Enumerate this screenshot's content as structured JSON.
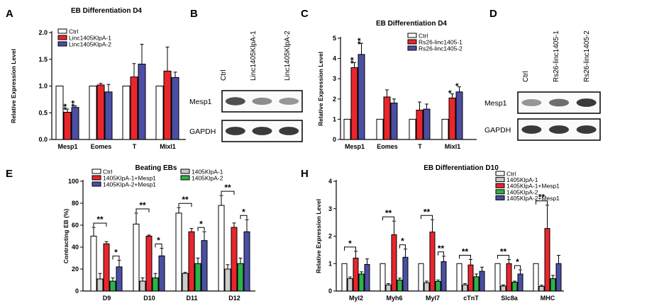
{
  "chart_data": [
    {
      "panel": "A",
      "type": "bar",
      "title": "EB Differentiation D4",
      "ylabel": "Relative Expression Level",
      "xlabel": "",
      "ylim": [
        0,
        2.0
      ],
      "yticks": [
        "0.0",
        "0.5",
        "1.0",
        "1.5",
        "2.0"
      ],
      "categories": [
        "Mesp1",
        "Eomes",
        "T",
        "Mixl1"
      ],
      "series": [
        {
          "name": "Ctrl",
          "color": "#ffffff",
          "values": [
            1.0,
            1.0,
            1.0,
            1.0
          ],
          "errors": [
            0.0,
            0.0,
            0.0,
            0.0
          ],
          "stars": [
            "",
            "",
            "",
            ""
          ]
        },
        {
          "name": "Linc1405KlpA-1",
          "color": "#e8262c",
          "values": [
            0.51,
            1.02,
            1.17,
            1.28
          ],
          "errors": [
            0.06,
            0.03,
            0.25,
            0.45
          ],
          "stars": [
            "**",
            "",
            "",
            ""
          ]
        },
        {
          "name": "Linc1405KlpA-2",
          "color": "#4a4fa3",
          "values": [
            0.6,
            0.89,
            1.41,
            1.16
          ],
          "errors": [
            0.03,
            0.14,
            0.37,
            0.1
          ],
          "stars": [
            "**",
            "",
            "",
            ""
          ]
        }
      ],
      "legend": "top-left"
    },
    {
      "panel": "C",
      "type": "bar",
      "title": "EB Differentiation D4",
      "ylabel": "Relative Expression Level",
      "xlabel": "",
      "ylim": [
        0,
        5
      ],
      "yticks": [
        "0",
        "1",
        "2",
        "3",
        "4",
        "5"
      ],
      "categories": [
        "Mesp1",
        "Eomes",
        "T",
        "Mixl1"
      ],
      "series": [
        {
          "name": "Ctrl",
          "color": "#ffffff",
          "values": [
            1.0,
            1.0,
            1.0,
            1.0
          ],
          "errors": [
            0,
            0,
            0,
            0
          ],
          "stars": [
            "",
            "",
            "",
            ""
          ]
        },
        {
          "name": "Rs26-linc1405-1",
          "color": "#e8262c",
          "values": [
            3.55,
            2.1,
            1.45,
            2.05
          ],
          "errors": [
            0.25,
            0.35,
            0.4,
            0.2
          ],
          "stars": [
            "**",
            "",
            "",
            "*"
          ]
        },
        {
          "name": "Rs26-linc1405-2",
          "color": "#4a4fa3",
          "values": [
            4.2,
            1.8,
            1.5,
            2.35
          ],
          "errors": [
            0.55,
            0.2,
            0.25,
            0.25
          ],
          "stars": [
            "**",
            "",
            "",
            "*"
          ]
        }
      ],
      "legend": "top-right"
    },
    {
      "panel": "E",
      "type": "bar",
      "title": "Beating  EBs",
      "ylabel": "Contracting EB (%)",
      "xlabel": "",
      "ylim": [
        0,
        100
      ],
      "yticks": [
        "0",
        "20",
        "40",
        "60",
        "80",
        "100"
      ],
      "categories": [
        "D9",
        "D10",
        "D11",
        "D12"
      ],
      "series": [
        {
          "name": "Ctrl",
          "color": "#ffffff",
          "values": [
            50,
            61,
            71,
            78
          ],
          "errors": [
            8,
            10,
            5,
            9
          ]
        },
        {
          "name": "1405KlpA-1",
          "color": "#cccccc",
          "values": [
            11,
            9,
            16,
            20
          ],
          "errors": [
            5,
            3,
            1,
            4
          ]
        },
        {
          "name": "1405KlpA-1+Mesp1",
          "color": "#e8262c",
          "values": [
            43,
            50,
            54,
            58
          ],
          "errors": [
            2,
            1,
            3,
            4
          ]
        },
        {
          "name": "1405KlpA-2",
          "color": "#2bb34a",
          "values": [
            9,
            12,
            25,
            25
          ],
          "errors": [
            3,
            4,
            5,
            5
          ]
        },
        {
          "name": "1405KlpA-2+Mesp1",
          "color": "#4a4fa3",
          "values": [
            22,
            32,
            46,
            54
          ],
          "errors": [
            6,
            7,
            8,
            11
          ]
        }
      ],
      "brackets": [
        {
          "category": "D9",
          "from": 0,
          "to": 2,
          "label": "**"
        },
        {
          "category": "D9",
          "from": 3,
          "to": 4,
          "label": "*"
        },
        {
          "category": "D10",
          "from": 0,
          "to": 2,
          "label": "**"
        },
        {
          "category": "D10",
          "from": 3,
          "to": 4,
          "label": "*"
        },
        {
          "category": "D11",
          "from": 0,
          "to": 2,
          "label": "**"
        },
        {
          "category": "D11",
          "from": 3,
          "to": 4,
          "label": "*"
        },
        {
          "category": "D12",
          "from": 0,
          "to": 2,
          "label": "**"
        },
        {
          "category": "D12",
          "from": 3,
          "to": 4,
          "label": "*"
        }
      ],
      "legend": "top"
    },
    {
      "panel": "H",
      "type": "bar",
      "title": "EB Differentiation D10",
      "ylabel": "Relative Expression Level",
      "xlabel": "",
      "ylim": [
        0,
        4
      ],
      "yticks": [
        "0",
        "1",
        "2",
        "3",
        "4"
      ],
      "categories": [
        "Myl2",
        "Myh6",
        "Myl7",
        "cTnT",
        "Slc8a",
        "MHC"
      ],
      "series": [
        {
          "name": "Ctrl",
          "color": "#ffffff",
          "values": [
            1.0,
            1.0,
            1.0,
            1.0,
            1.0,
            1.0
          ],
          "errors": [
            0,
            0,
            0,
            0,
            0,
            0
          ]
        },
        {
          "name": "1405KlpA-1",
          "color": "#cccccc",
          "values": [
            0.45,
            0.22,
            0.3,
            0.22,
            0.18,
            0.17
          ],
          "errors": [
            0.06,
            0.05,
            0.06,
            0.05,
            0.04,
            0.04
          ]
        },
        {
          "name": "1405KlpA-1+Mesp1",
          "color": "#e8262c",
          "values": [
            1.2,
            2.05,
            2.15,
            0.95,
            1.0,
            2.28
          ],
          "errors": [
            0.25,
            0.5,
            0.45,
            0.2,
            0.15,
            0.85
          ]
        },
        {
          "name": "1405KlpA-2",
          "color": "#2bb34a",
          "values": [
            0.62,
            0.4,
            0.35,
            0.52,
            0.32,
            0.45
          ],
          "errors": [
            0.08,
            0.07,
            0.05,
            0.1,
            0.04,
            0.12
          ]
        },
        {
          "name": "1405KlpA-2+Mesp1",
          "color": "#4a4fa3",
          "values": [
            0.97,
            1.23,
            1.07,
            0.72,
            0.62,
            1.0
          ],
          "errors": [
            0.2,
            0.3,
            0.2,
            0.15,
            0.15,
            0.3
          ]
        }
      ],
      "brackets": [
        {
          "category": "Myl2",
          "from": 0,
          "to": 2,
          "label": "*"
        },
        {
          "category": "Myh6",
          "from": 0,
          "to": 2,
          "label": "**"
        },
        {
          "category": "Myh6",
          "from": 3,
          "to": 4,
          "label": "*"
        },
        {
          "category": "Myl7",
          "from": 0,
          "to": 2,
          "label": "**"
        },
        {
          "category": "Myl7",
          "from": 3,
          "to": 4,
          "label": "**"
        },
        {
          "category": "cTnT",
          "from": 0,
          "to": 2,
          "label": "**"
        },
        {
          "category": "Slc8a",
          "from": 0,
          "to": 2,
          "label": "**"
        },
        {
          "category": "Slc8a",
          "from": 3,
          "to": 4,
          "label": "*"
        },
        {
          "category": "MHC",
          "from": 0,
          "to": 2,
          "label": "**"
        }
      ],
      "legend": "top-right"
    }
  ],
  "blots": [
    {
      "panel": "B",
      "lanes": [
        "Ctrl",
        "Linc1405KlpA-1",
        "Linc1405KlpA-2"
      ],
      "rows": [
        "Mesp1",
        "GAPDH"
      ],
      "mesp1_intensity": [
        0.85,
        0.55,
        0.5
      ]
    },
    {
      "panel": "D",
      "lanes": [
        "Ctrl",
        "Rs26-linc1405-1",
        "Rs26-linc1405-2"
      ],
      "rows": [
        "Mesp1",
        "GAPDH"
      ],
      "mesp1_intensity": [
        0.5,
        0.7,
        0.95
      ]
    }
  ]
}
